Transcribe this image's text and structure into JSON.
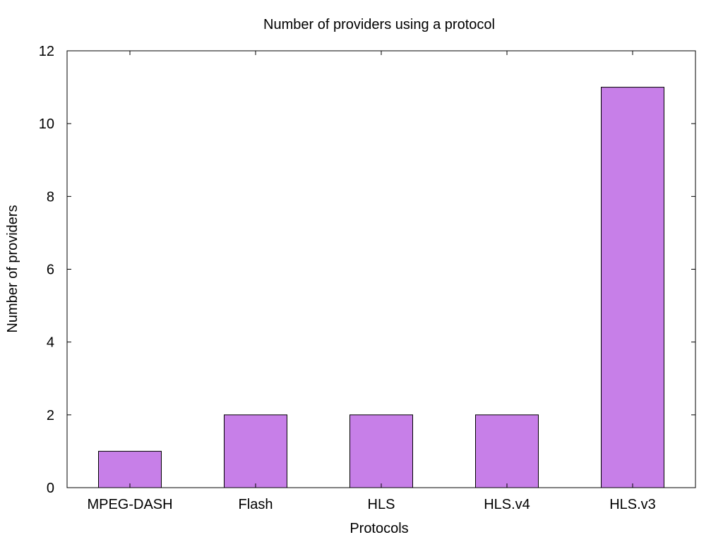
{
  "chart_data": {
    "type": "bar",
    "title": "Number of providers using a protocol",
    "xlabel": "Protocols",
    "ylabel": "Number of providers",
    "categories": [
      "MPEG-DASH",
      "Flash",
      "HLS",
      "HLS.v4",
      "HLS.v3"
    ],
    "values": [
      1,
      2,
      2,
      2,
      11
    ],
    "ylim": [
      0,
      12
    ],
    "yticks": [
      0,
      2,
      4,
      6,
      8,
      10,
      12
    ],
    "grid": false,
    "legend": "none",
    "bar_color": "#c77fe8",
    "bar_stroke": "#000000"
  }
}
